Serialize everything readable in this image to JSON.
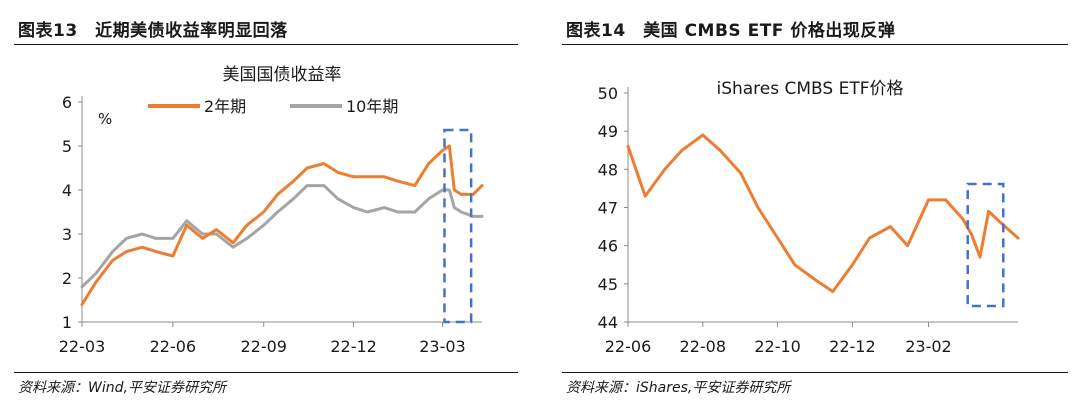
{
  "left_panel": {
    "header": "图表13　近期美债收益率明显回落",
    "source": "资料来源：Wind,平安证券研究所"
  },
  "right_panel": {
    "header": "图表14　美国 CMBS ETF 价格出现反弹",
    "source": "资料来源：iShares,平安证券研究所"
  },
  "colors": {
    "orange": "#ED7D31",
    "gray": "#A5A5A5",
    "highlight": "#4472C4"
  },
  "chart_data": [
    {
      "type": "line",
      "title": "美国国债收益率",
      "unit": "%",
      "xlabel": "",
      "ylabel": "",
      "x": [
        "2022-03-01",
        "2022-03-15",
        "2022-04-01",
        "2022-04-15",
        "2022-05-01",
        "2022-05-15",
        "2022-06-01",
        "2022-06-15",
        "2022-07-01",
        "2022-07-15",
        "2022-08-01",
        "2022-08-15",
        "2022-09-01",
        "2022-09-15",
        "2022-10-01",
        "2022-10-15",
        "2022-11-01",
        "2022-11-15",
        "2022-12-01",
        "2022-12-15",
        "2023-01-01",
        "2023-01-15",
        "2023-02-01",
        "2023-02-15",
        "2023-03-01",
        "2023-03-08",
        "2023-03-13",
        "2023-03-20",
        "2023-04-01",
        "2023-04-10"
      ],
      "x_ticks": [
        "22-03",
        "22-06",
        "22-09",
        "22-12",
        "23-03"
      ],
      "x_tick_dates": [
        "2022-03-01",
        "2022-06-01",
        "2022-09-01",
        "2022-12-01",
        "2023-03-01"
      ],
      "ylim": [
        1,
        6
      ],
      "y_ticks": [
        1,
        2,
        3,
        4,
        5,
        6
      ],
      "legend_position": "top",
      "series": [
        {
          "name": "2年期",
          "color": "#ED7D31",
          "values": [
            1.4,
            1.9,
            2.4,
            2.6,
            2.7,
            2.6,
            2.5,
            3.2,
            2.9,
            3.1,
            2.8,
            3.2,
            3.5,
            3.9,
            4.2,
            4.5,
            4.6,
            4.4,
            4.3,
            4.3,
            4.3,
            4.2,
            4.1,
            4.6,
            4.9,
            5.0,
            4.0,
            3.9,
            3.9,
            4.1
          ]
        },
        {
          "name": "10年期",
          "color": "#A5A5A5",
          "values": [
            1.8,
            2.1,
            2.6,
            2.9,
            3.0,
            2.9,
            2.9,
            3.3,
            3.0,
            3.0,
            2.7,
            2.9,
            3.2,
            3.5,
            3.8,
            4.1,
            4.1,
            3.8,
            3.6,
            3.5,
            3.6,
            3.5,
            3.5,
            3.8,
            4.0,
            4.0,
            3.6,
            3.5,
            3.4,
            3.4
          ]
        }
      ],
      "highlight_range": [
        "2023-03-03",
        "2023-03-30"
      ]
    },
    {
      "type": "line",
      "title": "iShares CMBS ETF价格",
      "xlabel": "",
      "ylabel": "",
      "x": [
        "2022-06-01",
        "2022-06-15",
        "2022-07-01",
        "2022-07-15",
        "2022-08-01",
        "2022-08-15",
        "2022-09-01",
        "2022-09-15",
        "2022-10-01",
        "2022-10-15",
        "2022-11-01",
        "2022-11-15",
        "2022-12-01",
        "2022-12-15",
        "2023-01-01",
        "2023-01-15",
        "2023-02-01",
        "2023-02-15",
        "2023-03-01",
        "2023-03-08",
        "2023-03-15",
        "2023-03-22",
        "2023-04-01",
        "2023-04-15"
      ],
      "x_ticks": [
        "22-06",
        "22-08",
        "22-10",
        "22-12",
        "23-02"
      ],
      "x_tick_dates": [
        "2022-06-01",
        "2022-08-01",
        "2022-10-01",
        "2022-12-01",
        "2023-02-01"
      ],
      "ylim": [
        44,
        50
      ],
      "y_ticks": [
        44,
        45,
        46,
        47,
        48,
        49,
        50
      ],
      "series": [
        {
          "name": "",
          "color": "#ED7D31",
          "values": [
            48.6,
            47.3,
            48.0,
            48.5,
            48.9,
            48.5,
            47.9,
            47.0,
            46.2,
            45.5,
            45.1,
            44.8,
            45.5,
            46.2,
            46.5,
            46.0,
            47.2,
            47.2,
            46.7,
            46.3,
            45.7,
            46.9,
            46.6,
            46.2
          ]
        }
      ],
      "highlight_range": [
        "2023-03-05",
        "2023-04-03"
      ]
    }
  ]
}
